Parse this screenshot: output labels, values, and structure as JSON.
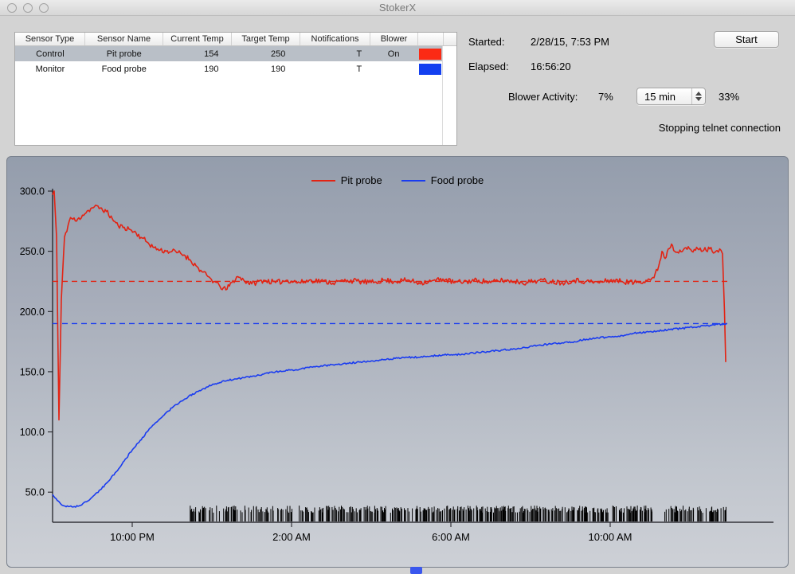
{
  "window": {
    "title": "StokerX"
  },
  "sensor_table": {
    "columns": [
      "Sensor Type",
      "Sensor Name",
      "Current Temp",
      "Target Temp",
      "Notifications",
      "Blower"
    ],
    "rows": [
      {
        "sensor_type": "Control",
        "sensor_name": "Pit probe",
        "current_temp": "154",
        "target_temp": "250",
        "notifications": "T",
        "blower": "On",
        "color": "#fb2a14",
        "selected": true
      },
      {
        "sensor_type": "Monitor",
        "sensor_name": "Food probe",
        "current_temp": "190",
        "target_temp": "190",
        "notifications": "T",
        "blower": "",
        "color": "#1340f0",
        "selected": false
      }
    ]
  },
  "controls": {
    "started_label": "Started:",
    "started_value": "2/28/15, 7:53 PM",
    "elapsed_label": "Elapsed:",
    "elapsed_value": "16:56:20",
    "start_button_label": "Start",
    "blower_activity_label": "Blower Activity:",
    "blower_activity_value": "7%",
    "interval_value": "15 min",
    "interval_percent": "33%",
    "status_message": "Stopping telnet connection"
  },
  "chart_data": {
    "type": "line",
    "legend": [
      {
        "label": "Pit probe",
        "color": "#e32313"
      },
      {
        "label": "Food probe",
        "color": "#1a3cf0"
      }
    ],
    "x_axis": {
      "range_hours": [
        0,
        18.1
      ],
      "start_time": "7:53 PM",
      "ticks": [
        {
          "hour": 2,
          "label": "10:00 PM"
        },
        {
          "hour": 6,
          "label": "2:00 AM"
        },
        {
          "hour": 10,
          "label": "6:00 AM"
        },
        {
          "hour": 14,
          "label": "10:00 AM"
        }
      ]
    },
    "y_axis": {
      "range": [
        25,
        302
      ],
      "ticks": [
        {
          "value": 300,
          "label": "300.0"
        },
        {
          "value": 250,
          "label": "250.0"
        },
        {
          "value": 200,
          "label": "200.0"
        },
        {
          "value": 150,
          "label": "150.0"
        },
        {
          "value": 100,
          "label": "100.0"
        },
        {
          "value": 50,
          "label": "50.0"
        }
      ]
    },
    "reference_lines": [
      {
        "series": "Pit probe",
        "value": 225,
        "color": "#e32313"
      },
      {
        "series": "Food probe",
        "value": 190,
        "color": "#1a3cf0"
      }
    ],
    "series": [
      {
        "name": "Pit probe",
        "color": "#e32313",
        "noise": 2.2,
        "points": [
          [
            0,
            297
          ],
          [
            0.04,
            300
          ],
          [
            0.1,
            262
          ],
          [
            0.16,
            110
          ],
          [
            0.22,
            210
          ],
          [
            0.3,
            262
          ],
          [
            0.45,
            278
          ],
          [
            0.6,
            275
          ],
          [
            0.75,
            280
          ],
          [
            0.9,
            284
          ],
          [
            1.05,
            287
          ],
          [
            1.2,
            286
          ],
          [
            1.35,
            283
          ],
          [
            1.5,
            277
          ],
          [
            1.65,
            271
          ],
          [
            1.8,
            270
          ],
          [
            1.95,
            268
          ],
          [
            2.1,
            265
          ],
          [
            2.25,
            261
          ],
          [
            2.4,
            257
          ],
          [
            2.55,
            253
          ],
          [
            2.7,
            251
          ],
          [
            2.85,
            250
          ],
          [
            3.0,
            250
          ],
          [
            3.15,
            249
          ],
          [
            3.3,
            247
          ],
          [
            3.45,
            243
          ],
          [
            3.6,
            238
          ],
          [
            3.75,
            233
          ],
          [
            3.9,
            229
          ],
          [
            4.05,
            225
          ],
          [
            4.2,
            221
          ],
          [
            4.35,
            218
          ],
          [
            4.5,
            224
          ],
          [
            4.65,
            229
          ],
          [
            4.8,
            226
          ],
          [
            5.0,
            223
          ],
          [
            5.3,
            226
          ],
          [
            5.6,
            224
          ],
          [
            5.9,
            226
          ],
          [
            6.2,
            224
          ],
          [
            6.5,
            226
          ],
          [
            6.8,
            225
          ],
          [
            7.1,
            224
          ],
          [
            7.4,
            226
          ],
          [
            7.7,
            225
          ],
          [
            8.0,
            224
          ],
          [
            8.3,
            226
          ],
          [
            8.6,
            225
          ],
          [
            8.9,
            226
          ],
          [
            9.2,
            224
          ],
          [
            9.5,
            225
          ],
          [
            9.8,
            227
          ],
          [
            10.1,
            224
          ],
          [
            10.4,
            225
          ],
          [
            10.7,
            226
          ],
          [
            11.0,
            224
          ],
          [
            11.3,
            226
          ],
          [
            11.6,
            225
          ],
          [
            11.9,
            224
          ],
          [
            12.2,
            226
          ],
          [
            12.5,
            225
          ],
          [
            12.8,
            224
          ],
          [
            13.1,
            226
          ],
          [
            13.4,
            225
          ],
          [
            13.7,
            224
          ],
          [
            14.0,
            226
          ],
          [
            14.3,
            225
          ],
          [
            14.6,
            224
          ],
          [
            14.9,
            226
          ],
          [
            15.1,
            228
          ],
          [
            15.22,
            238
          ],
          [
            15.3,
            250
          ],
          [
            15.38,
            244
          ],
          [
            15.46,
            252
          ],
          [
            15.54,
            256
          ],
          [
            15.62,
            250
          ],
          [
            15.75,
            251
          ],
          [
            15.9,
            253
          ],
          [
            16.05,
            250
          ],
          [
            16.2,
            252
          ],
          [
            16.35,
            251
          ],
          [
            16.5,
            252
          ],
          [
            16.65,
            250
          ],
          [
            16.75,
            252
          ],
          [
            16.82,
            248
          ],
          [
            16.87,
            200
          ],
          [
            16.9,
            158
          ]
        ]
      },
      {
        "name": "Food probe",
        "color": "#1a3cf0",
        "noise": 0.7,
        "points": [
          [
            0,
            48
          ],
          [
            0.12,
            43
          ],
          [
            0.25,
            39
          ],
          [
            0.4,
            38
          ],
          [
            0.55,
            38
          ],
          [
            0.7,
            39
          ],
          [
            0.85,
            42
          ],
          [
            1.0,
            46
          ],
          [
            1.2,
            52
          ],
          [
            1.4,
            59
          ],
          [
            1.6,
            67
          ],
          [
            1.8,
            76
          ],
          [
            2.0,
            85
          ],
          [
            2.2,
            93
          ],
          [
            2.4,
            101
          ],
          [
            2.6,
            108
          ],
          [
            2.8,
            114
          ],
          [
            3.0,
            120
          ],
          [
            3.2,
            125
          ],
          [
            3.4,
            129
          ],
          [
            3.6,
            133
          ],
          [
            3.8,
            136
          ],
          [
            4.0,
            139
          ],
          [
            4.2,
            141
          ],
          [
            4.4,
            143
          ],
          [
            4.6,
            144
          ],
          [
            4.8,
            145
          ],
          [
            5.0,
            146
          ],
          [
            5.3,
            148
          ],
          [
            5.6,
            150
          ],
          [
            5.9,
            151
          ],
          [
            6.2,
            152
          ],
          [
            6.5,
            154
          ],
          [
            6.8,
            155
          ],
          [
            7.1,
            156
          ],
          [
            7.4,
            157
          ],
          [
            7.7,
            158
          ],
          [
            8.0,
            159
          ],
          [
            8.3,
            160
          ],
          [
            8.6,
            161
          ],
          [
            8.9,
            162
          ],
          [
            9.2,
            162
          ],
          [
            9.5,
            163
          ],
          [
            9.8,
            164
          ],
          [
            10.1,
            164
          ],
          [
            10.4,
            165
          ],
          [
            10.7,
            166
          ],
          [
            11.0,
            167
          ],
          [
            11.3,
            168
          ],
          [
            11.6,
            169
          ],
          [
            11.9,
            170
          ],
          [
            12.2,
            172
          ],
          [
            12.5,
            173
          ],
          [
            12.8,
            174
          ],
          [
            13.1,
            175
          ],
          [
            13.4,
            177
          ],
          [
            13.7,
            178
          ],
          [
            14.0,
            179
          ],
          [
            14.3,
            180
          ],
          [
            14.6,
            182
          ],
          [
            14.9,
            183
          ],
          [
            15.2,
            184
          ],
          [
            15.5,
            185
          ],
          [
            15.8,
            186
          ],
          [
            16.1,
            187
          ],
          [
            16.4,
            188
          ],
          [
            16.6,
            189
          ],
          [
            16.8,
            189.5
          ],
          [
            16.92,
            190
          ]
        ]
      }
    ],
    "blower_marks": {
      "start_hour": 3.45,
      "end_hour": 16.92,
      "gap_hours": [
        15.08,
        15.36
      ],
      "color": "#000000",
      "seed": 7,
      "density": 0.55
    }
  }
}
